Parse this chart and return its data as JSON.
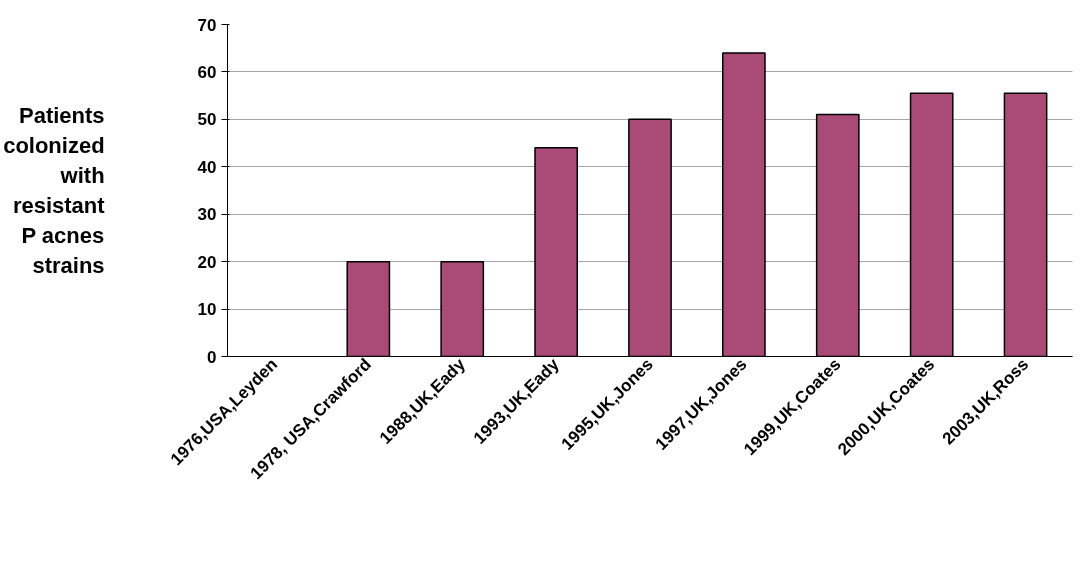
{
  "chart_data": {
    "type": "bar",
    "ylabel": "Patients\ncolonized\nwith\nresistant\nP acnes\nstrains",
    "categories": [
      "1976,USA,Leyden",
      "1978, USA,Crawford",
      "1988,UK,Eady",
      "1993,UK,Eady",
      "1995,UK,Jones",
      "1997,UK,Jones",
      "1999,UK,Coates",
      "2000,UK,Coates",
      "2003,UK,Ross"
    ],
    "values": [
      0,
      20,
      20,
      44,
      50,
      64,
      51,
      55.5,
      55.5
    ],
    "color": "#a94a77",
    "ylim": [
      0,
      70
    ],
    "yticks": [
      0,
      10,
      20,
      30,
      40,
      50,
      60,
      70
    ],
    "grid": "y"
  }
}
